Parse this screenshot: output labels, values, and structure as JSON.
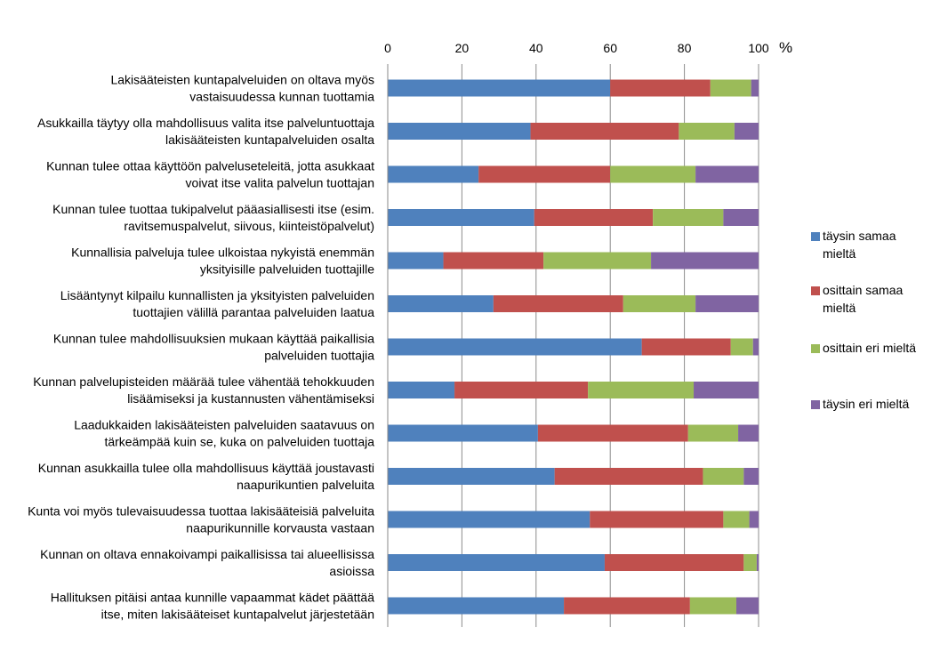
{
  "chart_data": {
    "type": "bar",
    "orientation": "horizontal",
    "stacked": "percent",
    "title": "",
    "xlabel": "",
    "ylabel": "",
    "axis_unit": "%",
    "xlim": [
      0,
      100
    ],
    "x_ticks": [
      "0",
      "20",
      "40",
      "60",
      "80",
      "100"
    ],
    "x_tick_values": [
      0,
      20,
      40,
      60,
      80,
      100
    ],
    "grid": "vertical",
    "legend_position": "right",
    "categories": [
      [
        "Lakisääteisten kuntapalveluiden on oltava myös",
        "vastaisuudessa kunnan tuottamia"
      ],
      [
        "Asukkailla täytyy olla mahdollisuus valita itse palveluntuottaja",
        "lakisääteisten kuntapalveluiden osalta"
      ],
      [
        "Kunnan tulee ottaa käyttöön palveluseteleitä, jotta asukkaat",
        "voivat itse valita palvelun tuottajan"
      ],
      [
        "Kunnan tulee tuottaa tukipalvelut pääasiallisesti itse (esim.",
        "ravitsemuspalvelut, siivous, kiinteistöpalvelut)"
      ],
      [
        "Kunnallisia palveluja tulee ulkoistaa nykyistä enemmän",
        "yksityisille palveluiden tuottajille"
      ],
      [
        "Lisääntynyt kilpailu kunnallisten ja yksityisten palveluiden",
        "tuottajien välillä parantaa palveluiden laatua"
      ],
      [
        "Kunnan tulee mahdollisuuksien mukaan käyttää paikallisia",
        "palveluiden tuottajia"
      ],
      [
        "Kunnan palvelupisteiden määrää tulee vähentää tehokkuuden",
        "lisäämiseksi ja kustannusten vähentämiseksi"
      ],
      [
        "Laadukkaiden lakisääteisten palveluiden saatavuus on",
        "tärkeämpää kuin se, kuka on palveluiden tuottaja"
      ],
      [
        "Kunnan asukkailla tulee olla mahdollisuus käyttää joustavasti",
        "naapurikuntien palveluita"
      ],
      [
        "Kunta voi myös tulevaisuudessa tuottaa lakisääteisiä palveluita",
        "naapurikunnille korvausta vastaan"
      ],
      [
        "Kunnan on oltava ennakoivampi paikallisissa tai alueellisissa",
        "asioissa"
      ],
      [
        "Hallituksen pitäisi antaa kunnille vapaammat kädet päättää",
        "itse, miten lakisääteiset kuntapalvelut järjestetään"
      ]
    ],
    "series": [
      {
        "name": "täysin samaa mieltä",
        "legend_lines": [
          "täysin samaa",
          "mieltä"
        ],
        "color": "#4F81BD",
        "values": [
          60,
          38.5,
          24.5,
          39.5,
          15,
          28.5,
          68.5,
          18,
          40.5,
          45,
          54.5,
          58.5,
          47.5
        ]
      },
      {
        "name": "osittain samaa mieltä",
        "legend_lines": [
          "osittain samaa",
          "mieltä"
        ],
        "color": "#C0504D",
        "values": [
          27,
          40,
          35.5,
          32,
          27,
          35,
          24,
          36,
          40.5,
          40,
          36,
          37.5,
          34
        ]
      },
      {
        "name": "osittain eri mieltä",
        "legend_lines": [
          "osittain eri mieltä"
        ],
        "color": "#9BBB59",
        "values": [
          11,
          15,
          23,
          19,
          29,
          19.5,
          6,
          28.5,
          13.5,
          11,
          7,
          3.5,
          12.5
        ]
      },
      {
        "name": "täysin eri mieltä",
        "legend_lines": [
          "täysin eri mieltä"
        ],
        "color": "#8064A2",
        "values": [
          2,
          6.5,
          17,
          9.5,
          29,
          17,
          1.5,
          17.5,
          5.5,
          4,
          2.5,
          0.5,
          6
        ]
      }
    ]
  }
}
